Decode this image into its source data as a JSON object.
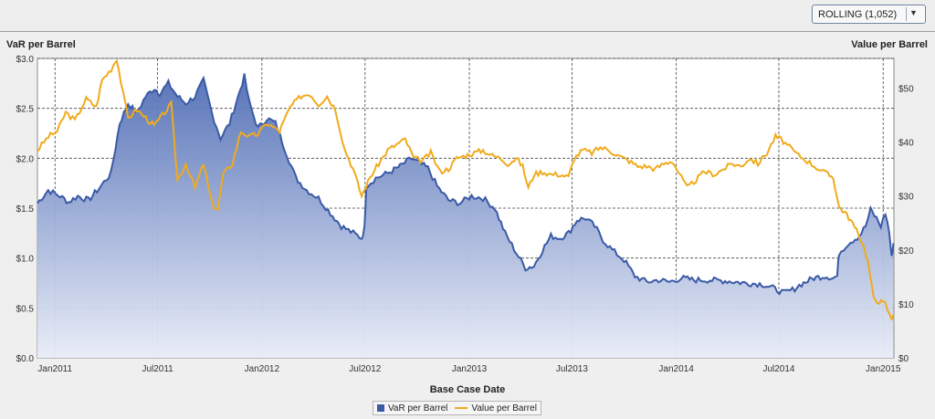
{
  "toolbar": {
    "dropdown_value": "ROLLING (1,052)",
    "dropdown_icon": "chevron-down-icon"
  },
  "colors": {
    "var": "#3a5aa6",
    "value": "#f0ab1c",
    "grid": "#444444"
  },
  "chart_data": {
    "type": "area+line",
    "xlabel": "Base Case Date",
    "ylabel_left": "VaR per Barrel",
    "ylabel_right": "Value per Barrel",
    "grid": true,
    "legend_position": "bottom",
    "x_ticks": [
      "Jan2011",
      "Jul2011",
      "Jan2012",
      "Jul2012",
      "Jan2013",
      "Jul2013",
      "Jan2014",
      "Jul2014",
      "Jan2015"
    ],
    "y_left": {
      "range": [
        0,
        3.0
      ],
      "ticks": [
        "$0.0",
        "$0.5",
        "$1.0",
        "$1.5",
        "$2.0",
        "$2.5",
        "$3.0"
      ]
    },
    "y_right": {
      "range": [
        0,
        55.5
      ],
      "ticks": [
        "$0",
        "$10",
        "$20",
        "$30",
        "$40",
        "$50"
      ]
    },
    "series": [
      {
        "name": "VaR per Barrel",
        "type": "area",
        "axis": "left",
        "points": [
          [
            "2010-12-01",
            1.55
          ],
          [
            "2010-12-20",
            1.68
          ],
          [
            "2011-01-10",
            1.62
          ],
          [
            "2011-01-25",
            1.56
          ],
          [
            "2011-02-10",
            1.62
          ],
          [
            "2011-03-01",
            1.58
          ],
          [
            "2011-03-20",
            1.7
          ],
          [
            "2011-04-10",
            1.85
          ],
          [
            "2011-04-25",
            2.35
          ],
          [
            "2011-05-10",
            2.55
          ],
          [
            "2011-05-25",
            2.45
          ],
          [
            "2011-06-10",
            2.62
          ],
          [
            "2011-06-25",
            2.7
          ],
          [
            "2011-07-05",
            2.65
          ],
          [
            "2011-07-20",
            2.75
          ],
          [
            "2011-08-05",
            2.62
          ],
          [
            "2011-08-20",
            2.55
          ],
          [
            "2011-09-05",
            2.62
          ],
          [
            "2011-09-20",
            2.78
          ],
          [
            "2011-10-05",
            2.45
          ],
          [
            "2011-10-20",
            2.2
          ],
          [
            "2011-11-05",
            2.35
          ],
          [
            "2011-11-20",
            2.62
          ],
          [
            "2011-12-01",
            2.82
          ],
          [
            "2011-12-10",
            2.55
          ],
          [
            "2011-12-25",
            2.3
          ],
          [
            "2012-01-10",
            2.4
          ],
          [
            "2012-01-25",
            2.35
          ],
          [
            "2012-02-10",
            2.1
          ],
          [
            "2012-03-01",
            1.8
          ],
          [
            "2012-03-20",
            1.68
          ],
          [
            "2012-04-10",
            1.6
          ],
          [
            "2012-05-01",
            1.45
          ],
          [
            "2012-05-20",
            1.32
          ],
          [
            "2012-06-10",
            1.25
          ],
          [
            "2012-06-25",
            1.2
          ],
          [
            "2012-06-30",
            1.3
          ],
          [
            "2012-07-03",
            1.72
          ],
          [
            "2012-07-20",
            1.8
          ],
          [
            "2012-08-10",
            1.85
          ],
          [
            "2012-09-01",
            1.92
          ],
          [
            "2012-09-20",
            2.0
          ],
          [
            "2012-10-05",
            1.95
          ],
          [
            "2012-10-20",
            1.9
          ],
          [
            "2012-11-05",
            1.72
          ],
          [
            "2012-11-25",
            1.58
          ],
          [
            "2012-12-15",
            1.55
          ],
          [
            "2013-01-05",
            1.62
          ],
          [
            "2013-01-25",
            1.6
          ],
          [
            "2013-02-15",
            1.5
          ],
          [
            "2013-03-05",
            1.25
          ],
          [
            "2013-03-25",
            1.05
          ],
          [
            "2013-04-10",
            0.9
          ],
          [
            "2013-04-25",
            0.92
          ],
          [
            "2013-05-10",
            1.08
          ],
          [
            "2013-05-25",
            1.22
          ],
          [
            "2013-06-10",
            1.2
          ],
          [
            "2013-06-25",
            1.25
          ],
          [
            "2013-07-10",
            1.38
          ],
          [
            "2013-07-25",
            1.4
          ],
          [
            "2013-08-10",
            1.32
          ],
          [
            "2013-08-25",
            1.18
          ],
          [
            "2013-09-10",
            1.08
          ],
          [
            "2013-10-01",
            0.98
          ],
          [
            "2013-10-20",
            0.82
          ],
          [
            "2013-11-10",
            0.76
          ],
          [
            "2013-12-01",
            0.78
          ],
          [
            "2013-12-20",
            0.76
          ],
          [
            "2014-01-10",
            0.8
          ],
          [
            "2014-02-01",
            0.78
          ],
          [
            "2014-03-01",
            0.78
          ],
          [
            "2014-04-01",
            0.77
          ],
          [
            "2014-05-01",
            0.75
          ],
          [
            "2014-06-01",
            0.74
          ],
          [
            "2014-06-20",
            0.7
          ],
          [
            "2014-07-10",
            0.65
          ],
          [
            "2014-07-25",
            0.68
          ],
          [
            "2014-08-10",
            0.74
          ],
          [
            "2014-09-01",
            0.8
          ],
          [
            "2014-09-20",
            0.82
          ],
          [
            "2014-10-05",
            0.8
          ],
          [
            "2014-10-12",
            0.82
          ],
          [
            "2014-10-15",
            1.05
          ],
          [
            "2014-11-01",
            1.15
          ],
          [
            "2014-11-20",
            1.22
          ],
          [
            "2014-12-01",
            1.32
          ],
          [
            "2014-12-10",
            1.48
          ],
          [
            "2014-12-20",
            1.4
          ],
          [
            "2014-12-28",
            1.32
          ],
          [
            "2015-01-05",
            1.45
          ],
          [
            "2015-01-12",
            1.25
          ],
          [
            "2015-01-16",
            1.0
          ],
          [
            "2015-01-19",
            1.15
          ]
        ]
      },
      {
        "name": "Value per Barrel",
        "type": "line",
        "axis": "right",
        "points": [
          [
            "2010-12-01",
            38.5
          ],
          [
            "2010-12-20",
            41.0
          ],
          [
            "2011-01-05",
            42.0
          ],
          [
            "2011-01-20",
            45.5
          ],
          [
            "2011-02-05",
            44.0
          ],
          [
            "2011-02-25",
            48.0
          ],
          [
            "2011-03-15",
            46.5
          ],
          [
            "2011-03-25",
            51.5
          ],
          [
            "2011-04-10",
            53.5
          ],
          [
            "2011-04-20",
            55.5
          ],
          [
            "2011-05-01",
            49.0
          ],
          [
            "2011-05-10",
            44.5
          ],
          [
            "2011-05-25",
            46.0
          ],
          [
            "2011-06-10",
            44.5
          ],
          [
            "2011-06-25",
            43.0
          ],
          [
            "2011-07-10",
            45.0
          ],
          [
            "2011-07-25",
            47.0
          ],
          [
            "2011-08-05",
            33.0
          ],
          [
            "2011-08-20",
            36.0
          ],
          [
            "2011-09-05",
            31.5
          ],
          [
            "2011-09-20",
            36.0
          ],
          [
            "2011-10-05",
            28.5
          ],
          [
            "2011-10-15",
            27.5
          ],
          [
            "2011-10-25",
            34.0
          ],
          [
            "2011-11-10",
            36.0
          ],
          [
            "2011-11-25",
            42.0
          ],
          [
            "2011-12-10",
            41.0
          ],
          [
            "2011-12-25",
            41.5
          ],
          [
            "2012-01-10",
            43.5
          ],
          [
            "2012-02-01",
            42.0
          ],
          [
            "2012-02-20",
            46.5
          ],
          [
            "2012-03-10",
            48.5
          ],
          [
            "2012-03-25",
            49.0
          ],
          [
            "2012-04-10",
            47.0
          ],
          [
            "2012-04-25",
            48.5
          ],
          [
            "2012-05-10",
            46.0
          ],
          [
            "2012-05-25",
            39.0
          ],
          [
            "2012-06-10",
            35.0
          ],
          [
            "2012-06-25",
            30.0
          ],
          [
            "2012-07-10",
            33.5
          ],
          [
            "2012-07-25",
            36.0
          ],
          [
            "2012-08-10",
            38.5
          ],
          [
            "2012-08-25",
            39.5
          ],
          [
            "2012-09-10",
            40.5
          ],
          [
            "2012-09-25",
            37.0
          ],
          [
            "2012-10-10",
            36.5
          ],
          [
            "2012-10-25",
            38.0
          ],
          [
            "2012-11-10",
            34.5
          ],
          [
            "2012-11-25",
            35.0
          ],
          [
            "2012-12-10",
            37.0
          ],
          [
            "2012-12-25",
            37.5
          ],
          [
            "2013-01-10",
            38.0
          ],
          [
            "2013-01-25",
            38.5
          ],
          [
            "2013-02-10",
            37.5
          ],
          [
            "2013-02-25",
            37.0
          ],
          [
            "2013-03-10",
            36.0
          ],
          [
            "2013-03-25",
            37.0
          ],
          [
            "2013-04-05",
            35.5
          ],
          [
            "2013-04-15",
            31.5
          ],
          [
            "2013-04-25",
            34.0
          ],
          [
            "2013-05-10",
            34.5
          ],
          [
            "2013-05-25",
            34.0
          ],
          [
            "2013-06-10",
            34.0
          ],
          [
            "2013-06-25",
            33.5
          ],
          [
            "2013-07-05",
            37.0
          ],
          [
            "2013-07-20",
            38.5
          ],
          [
            "2013-08-05",
            38.0
          ],
          [
            "2013-08-20",
            39.0
          ],
          [
            "2013-09-05",
            38.5
          ],
          [
            "2013-09-20",
            37.5
          ],
          [
            "2013-10-10",
            36.5
          ],
          [
            "2013-10-25",
            35.5
          ],
          [
            "2013-11-10",
            35.5
          ],
          [
            "2013-11-25",
            35.0
          ],
          [
            "2013-12-10",
            36.0
          ],
          [
            "2013-12-25",
            36.5
          ],
          [
            "2014-01-10",
            33.5
          ],
          [
            "2014-01-20",
            31.5
          ],
          [
            "2014-02-05",
            33.0
          ],
          [
            "2014-02-20",
            34.5
          ],
          [
            "2014-03-10",
            34.0
          ],
          [
            "2014-03-25",
            35.0
          ],
          [
            "2014-04-10",
            36.0
          ],
          [
            "2014-04-25",
            35.5
          ],
          [
            "2014-05-10",
            37.0
          ],
          [
            "2014-05-25",
            36.0
          ],
          [
            "2014-06-10",
            38.0
          ],
          [
            "2014-06-25",
            41.0
          ],
          [
            "2014-07-05",
            40.5
          ],
          [
            "2014-07-20",
            39.0
          ],
          [
            "2014-08-05",
            37.5
          ],
          [
            "2014-08-20",
            36.5
          ],
          [
            "2014-09-10",
            35.0
          ],
          [
            "2014-09-25",
            34.0
          ],
          [
            "2014-10-05",
            33.5
          ],
          [
            "2014-10-15",
            28.0
          ],
          [
            "2014-10-25",
            27.0
          ],
          [
            "2014-11-05",
            25.5
          ],
          [
            "2014-11-15",
            23.5
          ],
          [
            "2014-11-25",
            21.5
          ],
          [
            "2014-12-05",
            18.0
          ],
          [
            "2014-12-15",
            11.0
          ],
          [
            "2014-12-25",
            10.5
          ],
          [
            "2015-01-05",
            10.0
          ],
          [
            "2015-01-12",
            8.0
          ],
          [
            "2015-01-16",
            7.5
          ],
          [
            "2015-01-19",
            8.0
          ]
        ]
      }
    ]
  }
}
